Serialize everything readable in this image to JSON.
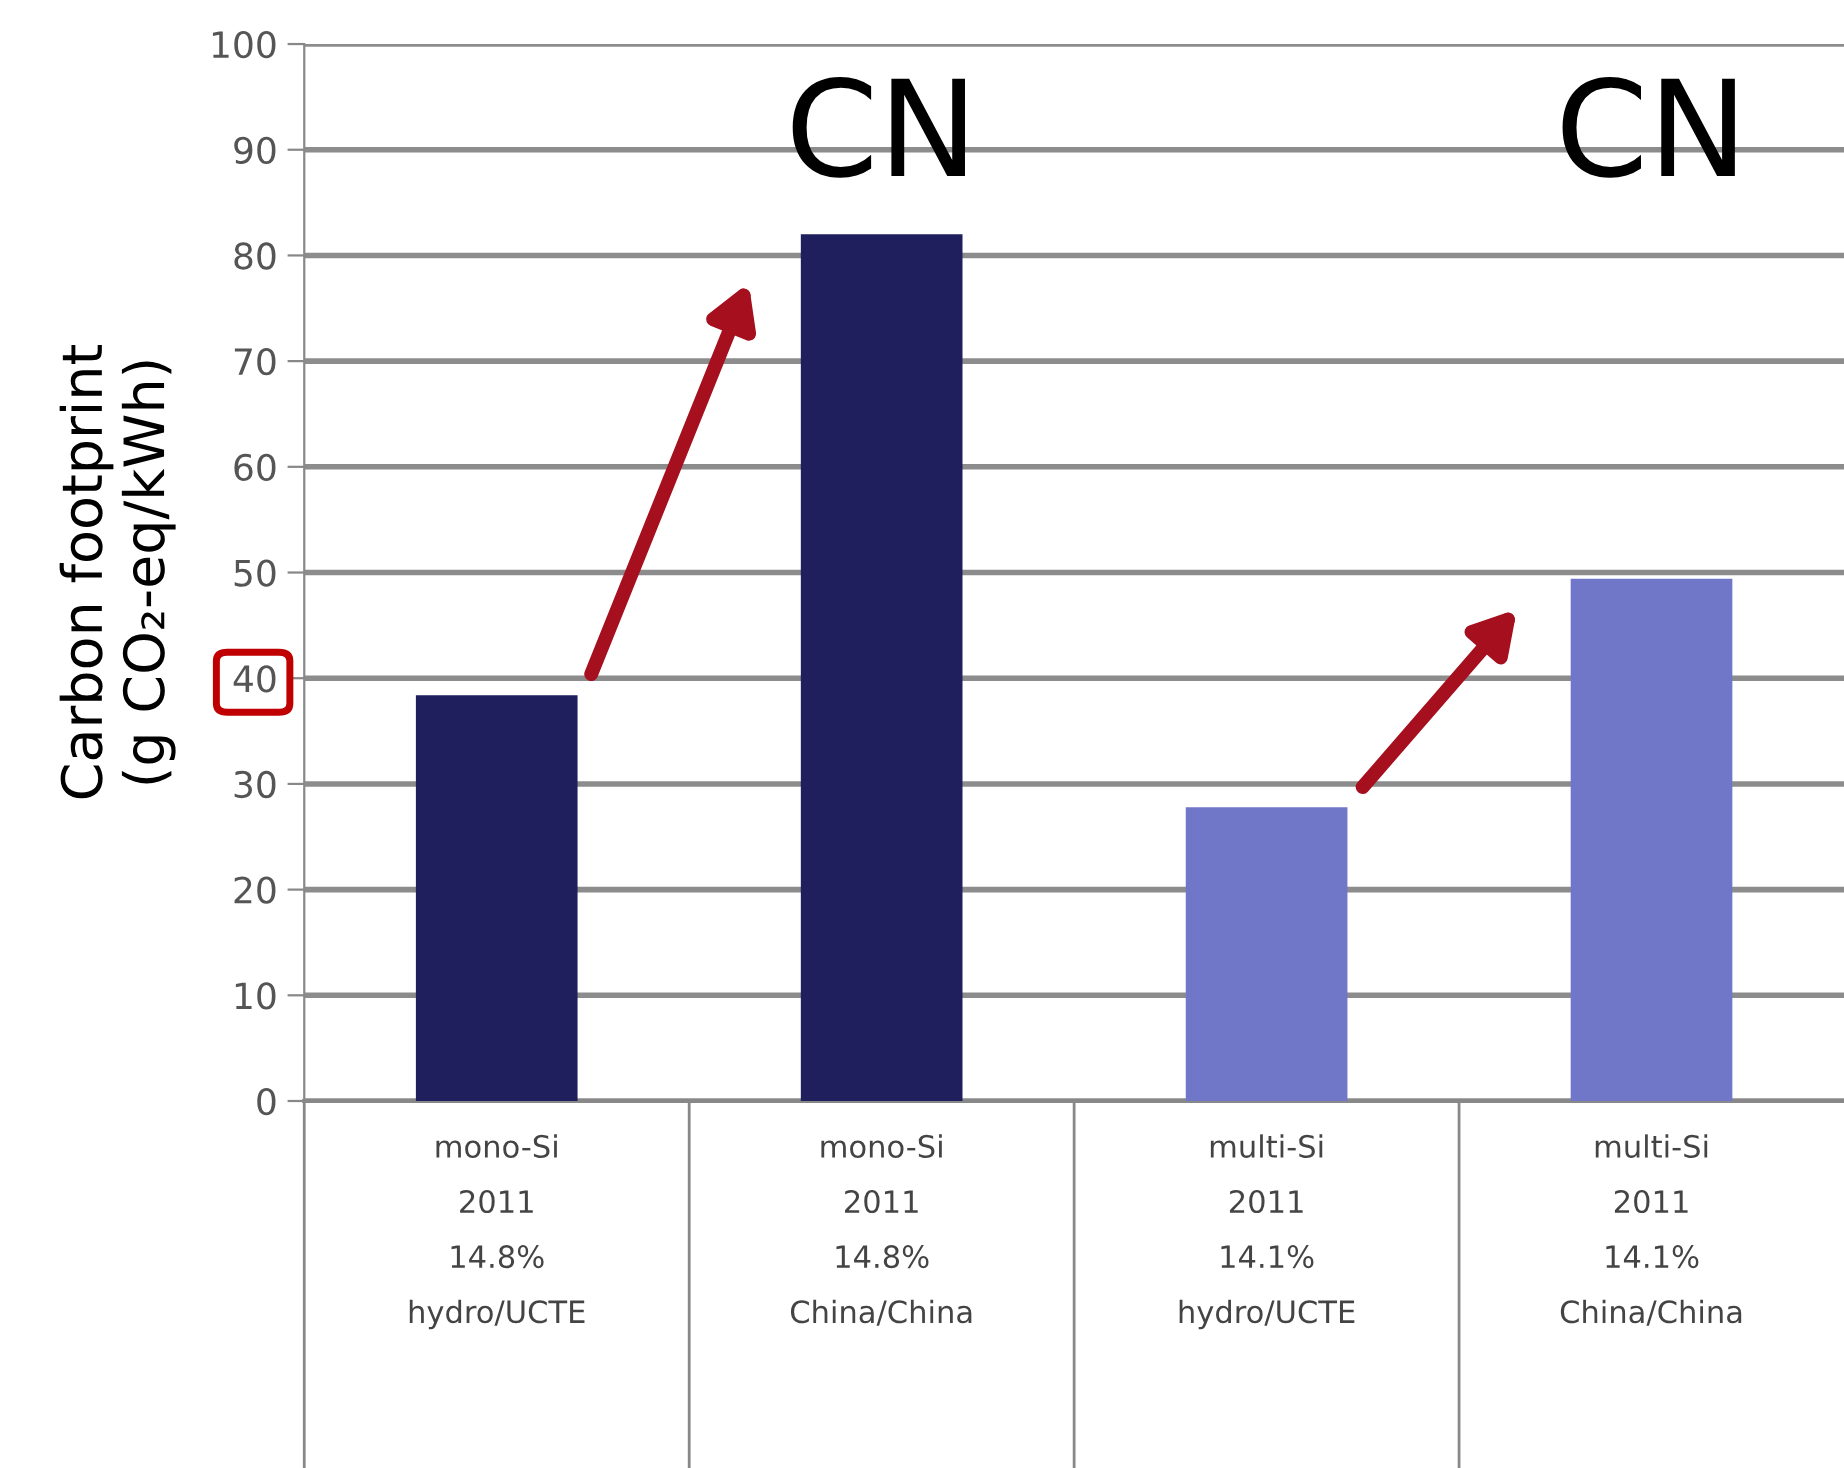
{
  "chart_data": {
    "type": "bar",
    "ylabel": "Carbon footprint\n(g CO₂-eq/kWh)",
    "categories": [
      "mono-Si\n2011\n14.8%\nhydro/UCTE",
      "mono-Si\n2011\n14.8%\nChina/China",
      "multi-Si\n2011\n14.1%\nhydro/UCTE",
      "multi-Si\n2011\n14.1%\nChina/China"
    ],
    "values": [
      38.4,
      82.0,
      27.8,
      49.4
    ],
    "colors": [
      "#1f1f5e",
      "#1f1f5e",
      "#7077c8",
      "#7077c8"
    ],
    "ylim": [
      0,
      100
    ],
    "yticks": [
      0,
      10,
      20,
      30,
      40,
      50,
      60,
      70,
      80,
      90,
      100
    ],
    "grid": "y",
    "annotations": [
      "CN",
      "CN"
    ]
  }
}
